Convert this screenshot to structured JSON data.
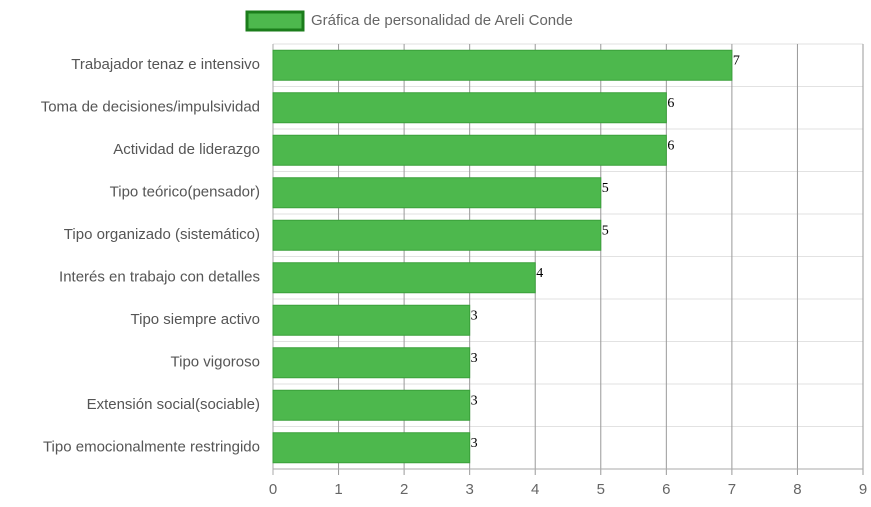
{
  "chart_data": {
    "type": "bar",
    "orientation": "horizontal",
    "categories": [
      "Trabajador tenaz e intensivo",
      "Toma de decisiones/impulsividad",
      "Actividad de liderazgo",
      "Tipo teórico(pensador)",
      "Tipo organizado (sistemático)",
      "Interés en trabajo con detalles",
      "Tipo siempre activo",
      "Tipo vigoroso",
      "Extensión social(sociable)",
      "Tipo emocionalmente restringido"
    ],
    "series": [
      {
        "name": "Gráfica de personalidad de Areli Conde",
        "color": "#4db84d",
        "values": [
          7,
          6,
          6,
          5,
          5,
          4,
          3,
          3,
          3,
          3
        ]
      }
    ],
    "xlim": [
      0,
      9
    ],
    "xticks": [
      0,
      1,
      2,
      3,
      4,
      5,
      6,
      7,
      8,
      9
    ],
    "grid": true,
    "legend": "top"
  }
}
